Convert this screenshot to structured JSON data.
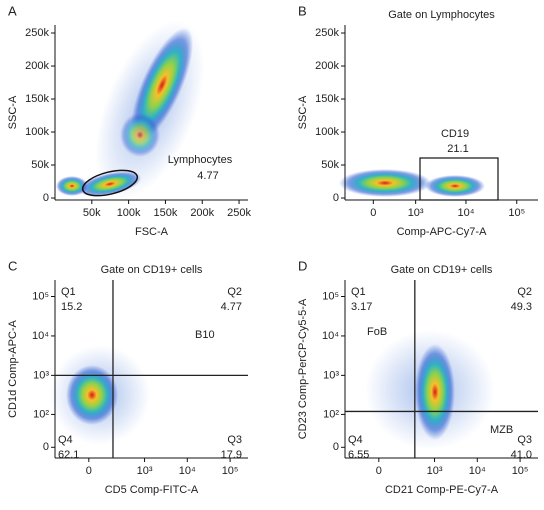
{
  "chart_data": [
    {
      "type": "flow-density",
      "panel": "A",
      "xlabel": "FSC-A",
      "ylabel": "SSC-A",
      "xlim": [
        0,
        262144
      ],
      "ylim": [
        -3000,
        262144
      ],
      "xticks": [
        {
          "value": 50000,
          "label": "50k"
        },
        {
          "value": 100000,
          "label": "100k"
        },
        {
          "value": 150000,
          "label": "150k"
        },
        {
          "value": 200000,
          "label": "200k"
        },
        {
          "value": 250000,
          "label": "250k"
        }
      ],
      "yticks": [
        0,
        {
          "value": 50000,
          "label": "50k"
        },
        {
          "value": 100000,
          "label": "100k"
        },
        {
          "value": 150000,
          "label": "150k"
        },
        {
          "value": 200000,
          "label": "200k"
        },
        {
          "value": 250000,
          "label": "250k"
        }
      ],
      "gates": [
        {
          "name": "Lymphocytes",
          "value": 4.77
        }
      ]
    },
    {
      "type": "flow-density",
      "panel": "B",
      "title": "Gate on Lymphocytes",
      "xlabel": "Comp-APC-Cy7-A",
      "ylabel": "SSC-A",
      "xscale": "biexponential",
      "xlim": [
        -500,
        262144
      ],
      "ylim": [
        -3000,
        262144
      ],
      "xticks": [
        0,
        {
          "value": 1000,
          "label": "10³"
        },
        {
          "value": 10000,
          "label": "10⁴"
        },
        {
          "value": 100000,
          "label": "10⁵"
        }
      ],
      "yticks": [
        0,
        {
          "value": 50000,
          "label": "50k"
        },
        {
          "value": 100000,
          "label": "100k"
        },
        {
          "value": 150000,
          "label": "150k"
        },
        {
          "value": 200000,
          "label": "200k"
        },
        {
          "value": 250000,
          "label": "250k"
        }
      ],
      "gates": [
        {
          "name": "CD19",
          "value": 21.1
        }
      ]
    },
    {
      "type": "flow-density",
      "panel": "C",
      "title": "Gate on CD19+ cells",
      "xlabel": "CD5 Comp-FITC-A",
      "ylabel": "CD1d Comp-APC-A",
      "xscale": "biexponential",
      "yscale": "biexponential",
      "xlim": [
        -300,
        262144
      ],
      "ylim": [
        -20,
        262144
      ],
      "xticks": [
        0,
        {
          "value": 1000,
          "label": "10³"
        },
        {
          "value": 10000,
          "label": "10⁴"
        },
        {
          "value": 100000,
          "label": "10⁵"
        }
      ],
      "yticks": [
        0,
        {
          "value": 100,
          "label": "10²"
        },
        {
          "value": 1000,
          "label": "10³"
        },
        {
          "value": 10000,
          "label": "10⁴"
        },
        {
          "value": 100000,
          "label": "10⁵"
        }
      ],
      "quadrant_gate": {
        "x": 170,
        "y": 1000
      },
      "quadrants": [
        {
          "name": "Q1",
          "value": 15.2
        },
        {
          "name": "Q2",
          "value": 4.77
        },
        {
          "name": "Q3",
          "value": 17.9
        },
        {
          "name": "Q4",
          "value": 62.1
        }
      ],
      "annotations": [
        "B10"
      ]
    },
    {
      "type": "flow-density",
      "panel": "D",
      "title": "Gate on CD19+ cells",
      "xlabel": "CD21 Comp-PE-Cy7-A",
      "ylabel": "CD23 Comp-PerCP-Cy5-5-A",
      "xscale": "biexponential",
      "yscale": "biexponential",
      "xlim": [
        -300,
        262144
      ],
      "ylim": [
        -20,
        262144
      ],
      "xticks": [
        0,
        {
          "value": 1000,
          "label": "10³"
        },
        {
          "value": 10000,
          "label": "10⁴"
        },
        {
          "value": 100000,
          "label": "10⁵"
        }
      ],
      "yticks": [
        0,
        {
          "value": 100,
          "label": "10²"
        },
        {
          "value": 1000,
          "label": "10³"
        },
        {
          "value": 10000,
          "label": "10⁴"
        },
        {
          "value": 100000,
          "label": "10⁵"
        }
      ],
      "quadrant_gate": {
        "x": 340,
        "y": 120
      },
      "quadrants": [
        {
          "name": "Q1",
          "value": 3.17
        },
        {
          "name": "Q2",
          "value": 49.3
        },
        {
          "name": "Q3",
          "value": 41,
          "label": "41.0"
        },
        {
          "name": "Q4",
          "value": 6.55
        }
      ],
      "annotations": [
        "FoB",
        "MZB"
      ]
    }
  ]
}
